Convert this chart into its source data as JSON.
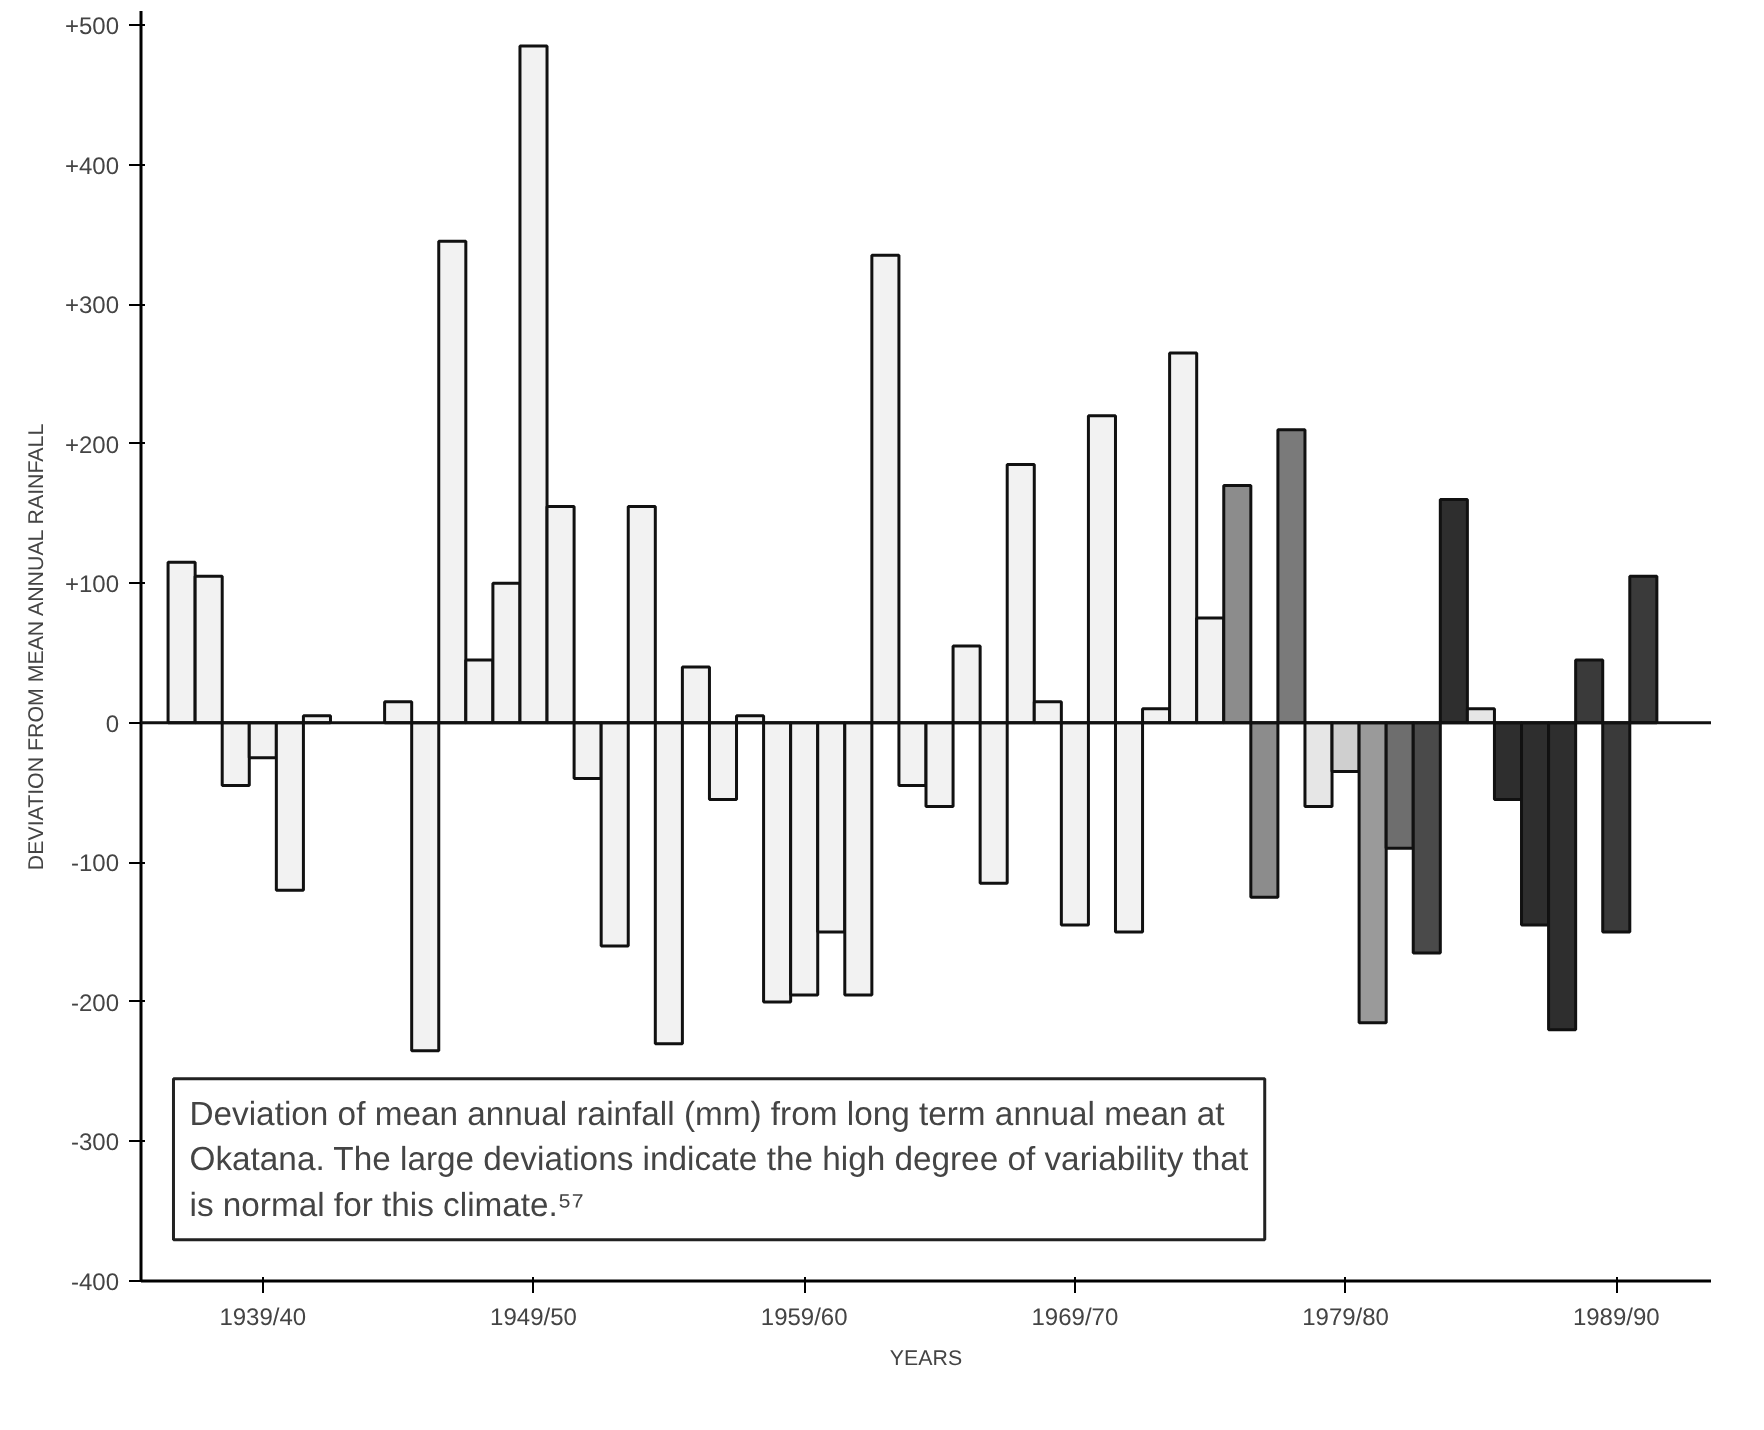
{
  "chart_data": {
    "type": "bar",
    "xlabel": "YEARS",
    "ylabel": "DEVIATION FROM MEAN ANNUAL RAINFALL",
    "categories": [
      null,
      null,
      null,
      "1939/40",
      null,
      null,
      null,
      null,
      null,
      null,
      null,
      null,
      null,
      "1949/50",
      null,
      null,
      null,
      null,
      null,
      null,
      null,
      null,
      null,
      "1959/60",
      null,
      null,
      null,
      null,
      null,
      null,
      null,
      null,
      null,
      "1969/70",
      null,
      null,
      null,
      null,
      null,
      null,
      null,
      null,
      null,
      "1979/80",
      null,
      null,
      null,
      null,
      null,
      null,
      null,
      null,
      null,
      "1989/90",
      null
    ],
    "values": [
      115,
      105,
      -45,
      -25,
      -120,
      5,
      null,
      null,
      15,
      -235,
      345,
      45,
      100,
      485,
      155,
      -40,
      -160,
      155,
      -230,
      40,
      -55,
      5,
      -200,
      -195,
      -150,
      -195,
      335,
      -45,
      -60,
      55,
      -115,
      185,
      15,
      -145,
      220,
      -150,
      10,
      265,
      75,
      170,
      -125,
      210,
      -60,
      -35,
      -215,
      -90,
      -165,
      160,
      10,
      -55,
      -145,
      -220,
      45,
      -150,
      105
    ],
    "colors": [
      "#f2f2f2",
      "#f2f2f2",
      "#f2f2f2",
      "#f2f2f2",
      "#f2f2f2",
      "#f2f2f2",
      null,
      null,
      "#f2f2f2",
      "#f2f2f2",
      "#f2f2f2",
      "#f2f2f2",
      "#f2f2f2",
      "#f2f2f2",
      "#f2f2f2",
      "#f2f2f2",
      "#f2f2f2",
      "#f2f2f2",
      "#f2f2f2",
      "#f2f2f2",
      "#f2f2f2",
      "#f2f2f2",
      "#f2f2f2",
      "#f2f2f2",
      "#f2f2f2",
      "#f2f2f2",
      "#f2f2f2",
      "#f2f2f2",
      "#f2f2f2",
      "#f2f2f2",
      "#f2f2f2",
      "#f2f2f2",
      "#f2f2f2",
      "#f2f2f2",
      "#f2f2f2",
      "#f2f2f2",
      "#f2f2f2",
      "#f2f2f2",
      "#f2f2f2",
      "#8c8c8c",
      "#8c8c8c",
      "#7a7a7a",
      "#e6e6e6",
      "#cfcfcf",
      "#9a9a9a",
      "#6e6e6e",
      "#4a4a4a",
      "#2e2e2e",
      "#e6e6e6",
      "#2e2e2e",
      "#2e2e2e",
      "#2e2e2e",
      "#3a3a3a",
      "#3a3a3a",
      "#3a3a3a"
    ],
    "ylim": [
      -400,
      510
    ],
    "yticks": [
      {
        "value": 500,
        "label": "+500"
      },
      {
        "value": 400,
        "label": "+400"
      },
      {
        "value": 300,
        "label": "+300"
      },
      {
        "value": 200,
        "label": "+200"
      },
      {
        "value": 100,
        "label": "+100"
      },
      0,
      -100,
      -200,
      -300,
      -400
    ],
    "grid": false,
    "ref_lines": [
      {
        "axis": "y",
        "value": 0
      }
    ],
    "annotations": [
      {
        "text": "Deviation of mean annual rainfall (mm) from long term annual mean at Okatana. The large deviations indicate the high degree of variability that is normal for this climate.⁵⁷"
      }
    ]
  }
}
